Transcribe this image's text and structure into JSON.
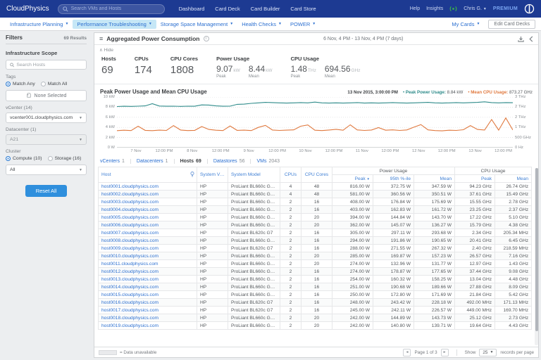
{
  "topnav": {
    "brand": "CloudPhysics",
    "search_placeholder": "Search VMs and Hosts",
    "items": [
      "Dashboard",
      "Card Deck",
      "Card Builder",
      "Card Store"
    ],
    "help": "Help",
    "insights": "Insights",
    "user": "Chris G.",
    "premium": "PREMIUM"
  },
  "subnav": {
    "menus": [
      {
        "label": "Infrastructure Planning",
        "active": false
      },
      {
        "label": "Performance Troubleshooting",
        "active": true
      },
      {
        "label": "Storage Space Management",
        "active": false
      },
      {
        "label": "Health Checks",
        "active": false
      },
      {
        "label": "POWER",
        "active": false
      }
    ],
    "my_cards": "My Cards",
    "edit_card_decks": "Edit Card Decks"
  },
  "sidebar": {
    "title": "Filters",
    "results": "69 Results",
    "section": "Infrastructure Scope",
    "search_placeholder": "Search Hosts",
    "tags_label": "Tags",
    "match_any": "Match Any",
    "match_all": "Match All",
    "tag_selector": "None Selected",
    "vcenter_label": "vCenter (14)",
    "vcenter_value": "vcenter001.cloudphysics.com",
    "datacenter_label": "Datacenter (1)",
    "datacenter_value": "A21",
    "cluster_label": "Cluster",
    "cluster_compute": "Compute (10)",
    "cluster_storage": "Storage (16)",
    "cluster_value": "All",
    "reset_button": "Reset All"
  },
  "card": {
    "title": "Aggregated Power Consumption",
    "date_range": "6 Nov, 4 PM - 13 Nov, 4 PM (7 days)",
    "hide_label": "Hide"
  },
  "stats": {
    "hosts_label": "Hosts",
    "hosts_value": "69",
    "cpus_label": "CPUs",
    "cpus_value": "174",
    "cores_label": "CPU Cores",
    "cores_value": "1808",
    "power_label": "Power Usage",
    "power_peak_value": "9.07",
    "power_peak_unit": "kW",
    "power_mean_value": "8.44",
    "power_mean_unit": "kW",
    "cpu_label": "CPU Usage",
    "cpu_peak_value": "1.48",
    "cpu_peak_unit": "THz",
    "cpu_mean_value": "694.56",
    "cpu_mean_unit": "GHz",
    "peak_sub": "Peak",
    "mean_sub": "Mean"
  },
  "chart_data": {
    "type": "line",
    "title": "Peak Power Usage and Mean CPU Usage",
    "hover_timestamp": "13 Nov 2015, 3:00:00 PM",
    "legend": [
      {
        "name": "Peak Power Usage:",
        "value": "8.84 kW",
        "color": "#2e8b8a"
      },
      {
        "name": "Mean CPU Usage:",
        "value": "873.27 GHz",
        "color": "#e0793f"
      }
    ],
    "y_left": {
      "unit": "kW",
      "min": 0,
      "max": 10,
      "ticks": [
        "10 kW",
        "8 kW",
        "6 kW",
        "4 kW",
        "2 kW",
        "0 W"
      ]
    },
    "y_right": {
      "unit": "GHz",
      "min": 0,
      "max": 2500,
      "ticks": [
        "3 THz",
        "2 THz",
        "2 THz",
        "1 THz",
        "500 GHz",
        "0 Hz"
      ]
    },
    "x_ticks": {
      "labels": [
        "7 Nov",
        "12:00 PM",
        "8 Nov",
        "12:00 PM",
        "9 Nov",
        "12:00 PM",
        "10 Nov",
        "12:00 PM",
        "11 Nov",
        "12:00 PM",
        "12 Nov",
        "12:00 PM",
        "13 Nov",
        "12:00 PM"
      ],
      "positions_pct": [
        4.8,
        11.9,
        19.0,
        26.2,
        33.3,
        40.5,
        47.6,
        54.8,
        61.9,
        69.0,
        76.2,
        83.3,
        90.5,
        97.6
      ]
    },
    "series": [
      {
        "name": "Peak Power Usage",
        "unit": "kW",
        "axis": "left",
        "color": "#2e8b8a",
        "values": [
          8.12,
          8.18,
          8.15,
          8.2,
          8.25,
          8.68,
          8.22,
          8.18,
          8.2,
          8.15,
          8.2,
          8.18,
          8.45,
          8.42,
          8.25,
          8.18,
          8.2,
          8.55,
          8.6,
          8.75,
          8.85,
          8.95,
          8.9,
          8.85,
          8.8,
          8.85,
          8.9,
          8.85,
          9.0,
          8.85,
          8.8,
          8.85,
          8.8,
          8.85,
          8.9,
          8.8,
          8.85,
          8.8,
          8.85,
          8.9,
          8.85,
          8.8,
          8.85,
          8.9,
          8.95,
          8.85,
          8.8,
          8.85,
          8.9,
          8.85,
          8.9,
          8.95,
          9.05,
          8.9,
          8.85,
          8.9,
          8.87
        ]
      },
      {
        "name": "Mean CPU Usage",
        "unit": "GHz",
        "axis": "right",
        "color": "#e0793f",
        "values": [
          840,
          860,
          845,
          1060,
          855,
          840,
          865,
          850,
          1090,
          870,
          845,
          855,
          1040,
          900,
          860,
          845,
          1070,
          855,
          865,
          845,
          1000,
          1100,
          870,
          850,
          865,
          880,
          1060,
          1120,
          860,
          845,
          870,
          905,
          860,
          1130,
          875,
          850,
          870,
          990,
          860,
          880,
          850,
          875,
          1010,
          1140,
          880,
          845,
          830,
          860,
          850,
          885,
          1090,
          900,
          870,
          1390,
          865,
          1470,
          870
        ]
      }
    ]
  },
  "entity_tabs": [
    {
      "label": "vCenters",
      "count": "1",
      "active": false
    },
    {
      "label": "Datacenters",
      "count": "1",
      "active": false
    },
    {
      "label": "Hosts",
      "count": "69",
      "active": true
    },
    {
      "label": "Datastores",
      "count": "56",
      "active": false
    },
    {
      "label": "VMs",
      "count": "2043",
      "active": false
    }
  ],
  "table": {
    "col_host": "Host",
    "col_vendor": "System Vendor",
    "col_model": "System Model",
    "col_cpus": "CPUs",
    "col_cores": "CPU Cores",
    "group_power": "Power Usage",
    "group_cpu": "CPU Usage",
    "col_peak": "Peak",
    "col_p95": "95th %-ile",
    "col_mean": "Mean",
    "col_cpu_peak": "Peak",
    "col_cpu_mean": "Mean",
    "rows": [
      [
        "host0001.cloudphysics.com",
        "HP",
        "ProLiant BL660c Gen9",
        "4",
        "48",
        "816.00 W",
        "372.75 W",
        "347.59 W",
        "94.23 GHz",
        "26.74 GHz"
      ],
      [
        "host0002.cloudphysics.com",
        "HP",
        "ProLiant BL660c Gen9",
        "4",
        "48",
        "581.00 W",
        "360.56 W",
        "350.51 W",
        "37.61 GHz",
        "15.49 GHz"
      ],
      [
        "host0003.cloudphysics.com",
        "HP",
        "ProLiant BL660c Gen8",
        "2",
        "16",
        "408.00 W",
        "176.84 W",
        "175.69 W",
        "15.55 GHz",
        "2.78 GHz"
      ],
      [
        "host0004.cloudphysics.com",
        "HP",
        "ProLiant BL660c Gen8",
        "2",
        "16",
        "403.00 W",
        "162.83 W",
        "161.72 W",
        "23.25 GHz",
        "2.37 GHz"
      ],
      [
        "host0005.cloudphysics.com",
        "HP",
        "ProLiant BL660c Gen8",
        "2",
        "20",
        "394.00 W",
        "144.84 W",
        "143.70 W",
        "17.22 GHz",
        "5.10 GHz"
      ],
      [
        "host0006.cloudphysics.com",
        "HP",
        "ProLiant BL660c Gen8",
        "2",
        "20",
        "362.00 W",
        "145.07 W",
        "136.27 W",
        "15.79 GHz",
        "4.38 GHz"
      ],
      [
        "host0007.cloudphysics.com",
        "HP",
        "ProLiant BL620c G7",
        "2",
        "16",
        "305.00 W",
        "297.11 W",
        "293.68 W",
        "2.34 GHz",
        "205.34 MHz"
      ],
      [
        "host0008.cloudphysics.com",
        "HP",
        "ProLiant BL660c Gen8",
        "2",
        "16",
        "294.00 W",
        "191.86 W",
        "190.65 W",
        "20.41 GHz",
        "6.45 GHz"
      ],
      [
        "host0009.cloudphysics.com",
        "HP",
        "ProLiant BL620c G7",
        "2",
        "16",
        "288.00 W",
        "271.55 W",
        "267.32 W",
        "2.40 GHz",
        "218.59 MHz"
      ],
      [
        "host0010.cloudphysics.com",
        "HP",
        "ProLiant BL660c Gen8",
        "2",
        "20",
        "285.00 W",
        "169.87 W",
        "157.23 W",
        "26.57 GHz",
        "7.16 GHz"
      ],
      [
        "host0011.cloudphysics.com",
        "HP",
        "ProLiant BL660c Gen8",
        "2",
        "20",
        "274.00 W",
        "132.96 W",
        "131.77 W",
        "12.97 GHz",
        "1.43 GHz"
      ],
      [
        "host0012.cloudphysics.com",
        "HP",
        "ProLiant BL660c Gen8",
        "2",
        "16",
        "274.00 W",
        "178.87 W",
        "177.65 W",
        "37.44 GHz",
        "9.08 GHz"
      ],
      [
        "host0013.cloudphysics.com",
        "HP",
        "ProLiant BL660c Gen8",
        "2",
        "16",
        "254.00 W",
        "160.32 W",
        "158.25 W",
        "13.04 GHz",
        "4.48 GHz"
      ],
      [
        "host0014.cloudphysics.com",
        "HP",
        "ProLiant BL660c Gen8",
        "2",
        "16",
        "251.00 W",
        "190.68 W",
        "189.66 W",
        "27.88 GHz",
        "8.09 GHz"
      ],
      [
        "host0015.cloudphysics.com",
        "HP",
        "ProLiant BL660c Gen8",
        "2",
        "16",
        "250.00 W",
        "172.80 W",
        "171.69 W",
        "21.84 GHz",
        "5.42 GHz"
      ],
      [
        "host0016.cloudphysics.com",
        "HP",
        "ProLiant BL620c G7",
        "2",
        "16",
        "248.00 W",
        "243.42 W",
        "228.18 W",
        "492.00 MHz",
        "171.13 MHz"
      ],
      [
        "host0017.cloudphysics.com",
        "HP",
        "ProLiant BL620c G7",
        "2",
        "16",
        "245.00 W",
        "242.11 W",
        "226.57 W",
        "449.00 MHz",
        "169.70 MHz"
      ],
      [
        "host0018.cloudphysics.com",
        "HP",
        "ProLiant BL660c Gen8",
        "2",
        "20",
        "242.00 W",
        "144.89 W",
        "143.73 W",
        "25.12 GHz",
        "2.73 GHz"
      ],
      [
        "host0019.cloudphysics.com",
        "HP",
        "ProLiant BL660c Gen8",
        "2",
        "20",
        "242.00 W",
        "140.80 W",
        "139.71 W",
        "19.64 GHz",
        "4.43 GHz"
      ]
    ]
  },
  "footer": {
    "legend_label": "= Data unavailable",
    "page_label": "Page 1 of 3",
    "show_label": "Show",
    "per_page": "25",
    "records_label": "records per page"
  }
}
